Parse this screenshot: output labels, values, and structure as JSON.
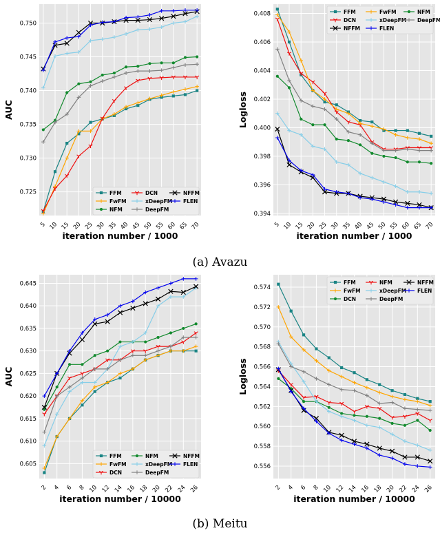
{
  "captions": [
    "(a) Avazu",
    "(b) Meitu"
  ],
  "chart_data": [
    {
      "type": "line",
      "xlabel": "iteration number / 1000",
      "ylabel": "AUC",
      "x": [
        5,
        10,
        15,
        20,
        25,
        30,
        35,
        40,
        45,
        50,
        55,
        60,
        65,
        70
      ],
      "xlim": [
        3.3,
        71.7
      ],
      "ylim": [
        0.7215,
        0.7528
      ],
      "yticks": [
        0.725,
        0.73,
        0.735,
        0.74,
        0.745,
        0.75
      ],
      "ytick_labels": [
        "0.725",
        "0.730",
        "0.735",
        "0.740",
        "0.745",
        "0.750"
      ],
      "grid": true,
      "legend": {
        "placement": "bottom-right",
        "columns": 3
      },
      "series": [
        {
          "name": "FFM",
          "color": "#1a8484",
          "marker": "square",
          "values": [
            0.7221,
            0.728,
            0.7322,
            0.7336,
            0.7353,
            0.7358,
            0.7363,
            0.7373,
            0.7378,
            0.7387,
            0.739,
            0.7392,
            0.7394,
            0.74
          ]
        },
        {
          "name": "FwFM",
          "color": "#ffa500",
          "marker": "plus",
          "values": [
            0.7218,
            0.7258,
            0.73,
            0.734,
            0.734,
            0.7358,
            0.7365,
            0.7376,
            0.7382,
            0.7388,
            0.7393,
            0.7398,
            0.7402,
            0.7406
          ]
        },
        {
          "name": "NFM",
          "color": "#138a2e",
          "marker": "circle",
          "values": [
            0.7342,
            0.7356,
            0.7397,
            0.741,
            0.7413,
            0.7423,
            0.7426,
            0.7435,
            0.7436,
            0.744,
            0.7441,
            0.7441,
            0.7449,
            0.745
          ]
        },
        {
          "name": "DCN",
          "color": "#ee1111",
          "marker": "tri",
          "values": [
            0.7222,
            0.7255,
            0.7274,
            0.7303,
            0.7318,
            0.7359,
            0.7385,
            0.7404,
            0.7415,
            0.7418,
            0.7419,
            0.742,
            0.742,
            0.742
          ]
        },
        {
          "name": "xDeepFM",
          "color": "#87cee8",
          "marker": "plus",
          "values": [
            0.7404,
            0.7451,
            0.7455,
            0.7457,
            0.7474,
            0.7476,
            0.7479,
            0.7484,
            0.749,
            0.7491,
            0.7494,
            0.75,
            0.7502,
            0.751
          ]
        },
        {
          "name": "DeepFM",
          "color": "#808080",
          "marker": "plus",
          "values": [
            0.7324,
            0.7353,
            0.7365,
            0.739,
            0.7407,
            0.7414,
            0.742,
            0.7426,
            0.7429,
            0.7429,
            0.743,
            0.7434,
            0.7438,
            0.7439
          ]
        },
        {
          "name": "NFFM",
          "color": "#000000",
          "marker": "x",
          "values": [
            0.7432,
            0.7467,
            0.747,
            0.7486,
            0.75,
            0.75,
            0.7502,
            0.7504,
            0.7504,
            0.7505,
            0.7507,
            0.751,
            0.7514,
            0.7517
          ]
        },
        {
          "name": "FLEN",
          "color": "#0000ee",
          "marker": "plus",
          "values": [
            0.743,
            0.7472,
            0.7478,
            0.748,
            0.7497,
            0.7501,
            0.7502,
            0.7508,
            0.7509,
            0.7512,
            0.7518,
            0.7518,
            0.7519,
            0.7519
          ]
        }
      ]
    },
    {
      "type": "line",
      "xlabel": "iteration number / 1000",
      "ylabel": "Logloss",
      "x": [
        5,
        10,
        15,
        20,
        25,
        30,
        35,
        40,
        45,
        50,
        55,
        60,
        65,
        70
      ],
      "xlim": [
        3.3,
        71.7
      ],
      "ylim": [
        0.39385,
        0.40865
      ],
      "yticks": [
        0.394,
        0.396,
        0.398,
        0.4,
        0.402,
        0.404,
        0.406,
        0.408
      ],
      "ytick_labels": [
        "0.394",
        "0.396",
        "0.398",
        "0.400",
        "0.402",
        "0.404",
        "0.406",
        "0.408"
      ],
      "grid": true,
      "legend": {
        "placement": "top-right",
        "columns": 3
      },
      "series": [
        {
          "name": "FFM",
          "color": "#1a8484",
          "marker": "square",
          "values": [
            0.4083,
            0.406,
            0.4037,
            0.4026,
            0.4018,
            0.4016,
            0.4011,
            0.4005,
            0.4004,
            0.3998,
            0.3998,
            0.3998,
            0.3996,
            0.3994
          ]
        },
        {
          "name": "DCN",
          "color": "#ee1111",
          "marker": "tri",
          "values": [
            0.4076,
            0.4052,
            0.4038,
            0.4032,
            0.4024,
            0.4011,
            0.4004,
            0.4002,
            0.399,
            0.3985,
            0.3985,
            0.3986,
            0.3986,
            0.3986
          ]
        },
        {
          "name": "NFFM",
          "color": "#000000",
          "marker": "x",
          "values": [
            0.3999,
            0.3974,
            0.3969,
            0.3965,
            0.3955,
            0.3954,
            0.3954,
            0.3952,
            0.3951,
            0.395,
            0.3948,
            0.3947,
            0.3946,
            0.3944
          ]
        },
        {
          "name": "FwFM",
          "color": "#ffa500",
          "marker": "plus",
          "values": [
            0.4079,
            0.4067,
            0.4047,
            0.4026,
            0.402,
            0.4013,
            0.401,
            0.4003,
            0.4001,
            0.3999,
            0.3995,
            0.3993,
            0.3992,
            0.3989
          ]
        },
        {
          "name": "xDeepFM",
          "color": "#87cee8",
          "marker": "plus",
          "values": [
            0.401,
            0.3998,
            0.3995,
            0.3987,
            0.3985,
            0.3976,
            0.3974,
            0.3968,
            0.3965,
            0.3962,
            0.3959,
            0.3955,
            0.3955,
            0.3954
          ]
        },
        {
          "name": "FLEN",
          "color": "#0000ee",
          "marker": "plus",
          "values": [
            0.3993,
            0.3977,
            0.397,
            0.3967,
            0.3957,
            0.3955,
            0.3954,
            0.3951,
            0.395,
            0.3948,
            0.3946,
            0.3944,
            0.3944,
            0.3944
          ]
        },
        {
          "name": "NFM",
          "color": "#138a2e",
          "marker": "circle",
          "values": [
            0.4036,
            0.4028,
            0.4006,
            0.4002,
            0.4002,
            0.3992,
            0.3991,
            0.3988,
            0.3982,
            0.398,
            0.3979,
            0.3976,
            0.3976,
            0.3975
          ]
        },
        {
          "name": "DeepFM",
          "color": "#808080",
          "marker": "plus",
          "values": [
            0.4055,
            0.4033,
            0.4019,
            0.4015,
            0.4013,
            0.4006,
            0.3997,
            0.3995,
            0.3989,
            0.3984,
            0.3984,
            0.3985,
            0.3984,
            0.3984
          ]
        }
      ]
    },
    {
      "type": "line",
      "xlabel": "iteration number / 10000",
      "ylabel": "AUC",
      "x": [
        2,
        4,
        6,
        8,
        10,
        12,
        14,
        16,
        18,
        20,
        22,
        24,
        26
      ],
      "xlim": [
        1.2,
        26.8
      ],
      "ylim": [
        0.6017,
        0.6469
      ],
      "yticks": [
        0.605,
        0.61,
        0.615,
        0.62,
        0.625,
        0.63,
        0.635,
        0.64,
        0.645
      ],
      "ytick_labels": [
        "0.605",
        "0.610",
        "0.615",
        "0.620",
        "0.625",
        "0.630",
        "0.635",
        "0.640",
        "0.645"
      ],
      "grid": true,
      "legend": {
        "placement": "bottom-right",
        "columns": 3
      },
      "series": [
        {
          "name": "FFM",
          "color": "#1a8484",
          "marker": "square",
          "values": [
            0.603,
            0.611,
            0.615,
            0.618,
            0.621,
            0.623,
            0.624,
            0.626,
            0.628,
            0.629,
            0.63,
            0.63,
            0.63
          ]
        },
        {
          "name": "FwFM",
          "color": "#ffa500",
          "marker": "plus",
          "values": [
            0.604,
            0.611,
            0.615,
            0.619,
            0.622,
            0.623,
            0.625,
            0.626,
            0.628,
            0.629,
            0.63,
            0.63,
            0.631
          ]
        },
        {
          "name": "DCN",
          "color": "#ee1111",
          "marker": "tri",
          "values": [
            0.616,
            0.62,
            0.624,
            0.625,
            0.626,
            0.628,
            0.628,
            0.63,
            0.63,
            0.631,
            0.631,
            0.632,
            0.634
          ]
        },
        {
          "name": "NFM",
          "color": "#138a2e",
          "marker": "circle",
          "values": [
            0.617,
            0.622,
            0.627,
            0.627,
            0.629,
            0.63,
            0.632,
            0.632,
            0.632,
            0.633,
            0.634,
            0.635,
            0.636
          ]
        },
        {
          "name": "xDeepFM",
          "color": "#87cee8",
          "marker": "plus",
          "values": [
            0.609,
            0.616,
            0.621,
            0.623,
            0.623,
            0.626,
            0.631,
            0.632,
            0.634,
            0.64,
            0.642,
            0.642,
            0.644
          ]
        },
        {
          "name": "DeepFM",
          "color": "#808080",
          "marker": "plus",
          "values": [
            0.612,
            0.62,
            0.622,
            0.624,
            0.626,
            0.626,
            0.628,
            0.629,
            0.629,
            0.63,
            0.631,
            0.633,
            0.633
          ]
        },
        {
          "name": "NFFM",
          "color": "#000000",
          "marker": "x",
          "values": [
            0.6175,
            0.625,
            0.6295,
            0.6325,
            0.636,
            0.6365,
            0.6385,
            0.6395,
            0.6405,
            0.6415,
            0.6432,
            0.643,
            0.6443
          ]
        },
        {
          "name": "FLEN",
          "color": "#0000ee",
          "marker": "plus",
          "values": [
            0.62,
            0.625,
            0.63,
            0.634,
            0.637,
            0.638,
            0.64,
            0.641,
            0.643,
            0.644,
            0.645,
            0.646,
            0.646
          ]
        }
      ]
    },
    {
      "type": "line",
      "xlabel": "iteration number / 10000",
      "ylabel": "Logloss",
      "x": [
        2,
        4,
        6,
        8,
        10,
        12,
        14,
        16,
        18,
        20,
        22,
        24,
        26
      ],
      "xlim": [
        1.2,
        26.8
      ],
      "ylim": [
        0.55475,
        0.57525
      ],
      "yticks": [
        0.556,
        0.558,
        0.56,
        0.562,
        0.564,
        0.566,
        0.568,
        0.57,
        0.572,
        0.574
      ],
      "ytick_labels": [
        "0.556",
        "0.558",
        "0.560",
        "0.562",
        "0.564",
        "0.566",
        "0.568",
        "0.570",
        "0.572",
        "0.574"
      ],
      "grid": true,
      "legend": {
        "placement": "top-right",
        "columns": 3
      },
      "series": [
        {
          "name": "FFM",
          "color": "#1a8484",
          "marker": "square",
          "values": [
            0.5743,
            0.5716,
            0.5692,
            0.5678,
            0.5669,
            0.5659,
            0.5654,
            0.5647,
            0.5642,
            0.5636,
            0.5632,
            0.5628,
            0.5625
          ]
        },
        {
          "name": "FwFM",
          "color": "#ffa500",
          "marker": "plus",
          "values": [
            0.572,
            0.569,
            0.5677,
            0.5666,
            0.5656,
            0.565,
            0.5644,
            0.5639,
            0.5634,
            0.563,
            0.5627,
            0.5625,
            0.5621
          ]
        },
        {
          "name": "DCN",
          "color": "#138a2e",
          "marker": "circle",
          "values": [
            0.5648,
            0.5638,
            0.5625,
            0.5625,
            0.5619,
            0.5613,
            0.5611,
            0.561,
            0.5608,
            0.5603,
            0.5601,
            0.5606,
            0.5596
          ]
        },
        {
          "name": "NFM",
          "color": "#ee1111",
          "marker": "tri",
          "values": [
            0.5656,
            0.5642,
            0.5629,
            0.563,
            0.5624,
            0.5623,
            0.5615,
            0.562,
            0.5618,
            0.5609,
            0.561,
            0.5613,
            0.5606
          ]
        },
        {
          "name": "xDeepFM",
          "color": "#87cee8",
          "marker": "plus",
          "values": [
            0.5685,
            0.5663,
            0.5645,
            0.5625,
            0.5615,
            0.561,
            0.5606,
            0.5601,
            0.5599,
            0.5592,
            0.5585,
            0.5581,
            0.5576
          ]
        },
        {
          "name": "DeepFM",
          "color": "#808080",
          "marker": "plus",
          "values": [
            0.5683,
            0.566,
            0.5655,
            0.5648,
            0.5642,
            0.5637,
            0.5636,
            0.5631,
            0.5623,
            0.5624,
            0.5618,
            0.5617,
            0.5616
          ]
        },
        {
          "name": "NFFM",
          "color": "#000000",
          "marker": "x",
          "values": [
            0.5657,
            0.5636,
            0.5616,
            0.5608,
            0.5594,
            0.5591,
            0.5585,
            0.5582,
            0.5578,
            0.5575,
            0.5569,
            0.5569,
            0.5565
          ]
        },
        {
          "name": "FLEN",
          "color": "#0000ee",
          "marker": "plus",
          "values": [
            0.5658,
            0.5635,
            0.5618,
            0.5605,
            0.5593,
            0.5586,
            0.5582,
            0.5578,
            0.5571,
            0.5568,
            0.5562,
            0.556,
            0.5559
          ]
        }
      ]
    }
  ]
}
